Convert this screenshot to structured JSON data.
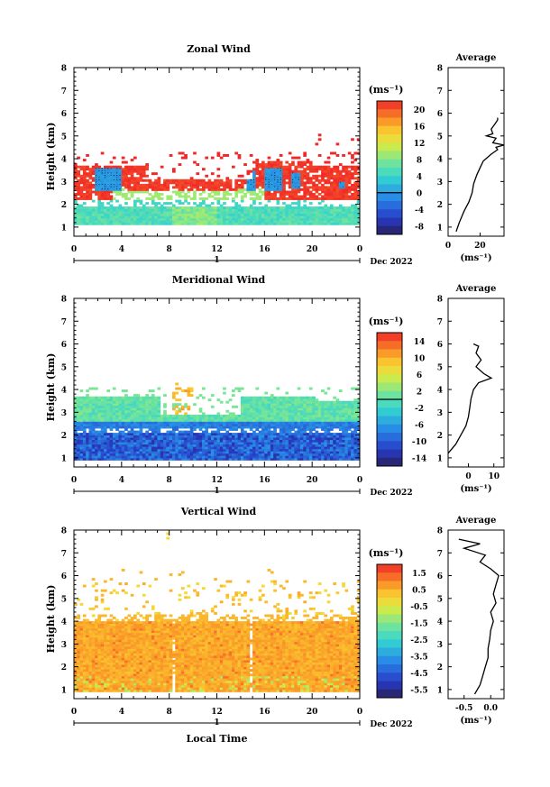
{
  "x_label": "Local Time",
  "date_label": "Dec 2022",
  "day_label": "1",
  "chart_data": [
    {
      "type": "heatmap",
      "title": "Zonal Wind",
      "ylabel": "Height (km)",
      "xlabel": "",
      "xlim": [
        0,
        24
      ],
      "ylim": [
        0.6,
        8
      ],
      "x_ticks": [
        "0",
        "4",
        "8",
        "12",
        "16",
        "20",
        "0"
      ],
      "y_ticks": [
        "1",
        "2",
        "3",
        "4",
        "5",
        "6",
        "7",
        "8"
      ],
      "colorbar": {
        "unit": "(ms⁻¹)",
        "ticks": [
          "20",
          "16",
          "12",
          "8",
          "4",
          "0",
          "-4",
          "-8"
        ],
        "range": [
          -10,
          22
        ],
        "zero_line": 0
      },
      "average_profile": {
        "title": "Average",
        "xlabel": "(ms⁻¹)",
        "x_ticks": [
          "0",
          "20"
        ],
        "xlim": [
          0,
          35
        ],
        "points": [
          [
            5,
            0.8
          ],
          [
            7,
            1.2
          ],
          [
            10,
            1.7
          ],
          [
            13,
            2.1
          ],
          [
            15,
            2.5
          ],
          [
            16,
            2.9
          ],
          [
            18,
            3.3
          ],
          [
            20,
            3.6
          ],
          [
            22,
            3.9
          ],
          [
            27,
            4.2
          ],
          [
            31,
            4.4
          ],
          [
            30,
            4.5
          ],
          [
            35,
            4.6
          ],
          [
            28,
            4.7
          ],
          [
            30,
            4.9
          ],
          [
            24,
            5.0
          ],
          [
            28,
            5.1
          ],
          [
            27,
            5.3
          ],
          [
            29,
            5.5
          ],
          [
            31,
            5.7
          ],
          [
            31,
            5.8
          ]
        ]
      }
    },
    {
      "type": "heatmap",
      "title": "Meridional Wind",
      "ylabel": "Height (km)",
      "xlabel": "",
      "xlim": [
        0,
        24
      ],
      "ylim": [
        0.6,
        8
      ],
      "x_ticks": [
        "0",
        "4",
        "8",
        "12",
        "16",
        "20",
        "0"
      ],
      "y_ticks": [
        "1",
        "2",
        "3",
        "4",
        "5",
        "6",
        "7",
        "8"
      ],
      "colorbar": {
        "unit": "(ms⁻¹)",
        "ticks": [
          "14",
          "10",
          "6",
          "2",
          "-2",
          "-6",
          "-10",
          "-14"
        ],
        "range": [
          -16,
          16
        ],
        "zero_line": 0
      },
      "average_profile": {
        "title": "Average",
        "xlabel": "(ms⁻¹)",
        "x_ticks": [
          "0",
          "10"
        ],
        "xlim": [
          -8,
          14
        ],
        "points": [
          [
            -8,
            1.2
          ],
          [
            -5,
            1.6
          ],
          [
            -3,
            2.0
          ],
          [
            -1,
            2.4
          ],
          [
            0,
            2.8
          ],
          [
            0.5,
            3.2
          ],
          [
            1,
            3.6
          ],
          [
            2,
            4.0
          ],
          [
            4,
            4.3
          ],
          [
            9,
            4.5
          ],
          [
            6,
            4.7
          ],
          [
            3,
            5.0
          ],
          [
            5,
            5.3
          ],
          [
            3,
            5.6
          ],
          [
            4,
            5.9
          ],
          [
            2,
            6.0
          ]
        ]
      }
    },
    {
      "type": "heatmap",
      "title": "Vertical Wind",
      "ylabel": "Height (km)",
      "xlabel": "Local Time",
      "xlim": [
        0,
        24
      ],
      "ylim": [
        0.6,
        8
      ],
      "x_ticks": [
        "0",
        "4",
        "8",
        "12",
        "16",
        "20",
        "0"
      ],
      "y_ticks": [
        "1",
        "2",
        "3",
        "4",
        "5",
        "6",
        "7",
        "8"
      ],
      "colorbar": {
        "unit": "(ms⁻¹)",
        "ticks": [
          "1.5",
          "0.5",
          "-0.5",
          "-1.5",
          "-2.5",
          "-3.5",
          "-4.5",
          "-5.5"
        ],
        "range": [
          -6,
          2
        ]
      },
      "average_profile": {
        "title": "Average",
        "xlabel": "(ms⁻¹)",
        "x_ticks": [
          "-0.5",
          "0.0"
        ],
        "xlim": [
          -0.8,
          0.25
        ],
        "points": [
          [
            -0.3,
            0.8
          ],
          [
            -0.2,
            1.2
          ],
          [
            -0.15,
            1.6
          ],
          [
            -0.1,
            2.0
          ],
          [
            -0.05,
            2.4
          ],
          [
            -0.05,
            2.8
          ],
          [
            -0.02,
            3.2
          ],
          [
            0.0,
            3.6
          ],
          [
            0.05,
            4.0
          ],
          [
            0.0,
            4.4
          ],
          [
            0.1,
            4.8
          ],
          [
            0.05,
            5.2
          ],
          [
            0.1,
            5.6
          ],
          [
            0.15,
            6.0
          ],
          [
            0.0,
            6.3
          ],
          [
            -0.2,
            6.6
          ],
          [
            -0.1,
            6.9
          ],
          [
            -0.5,
            7.2
          ],
          [
            -0.2,
            7.4
          ],
          [
            -0.6,
            7.6
          ]
        ]
      }
    }
  ]
}
